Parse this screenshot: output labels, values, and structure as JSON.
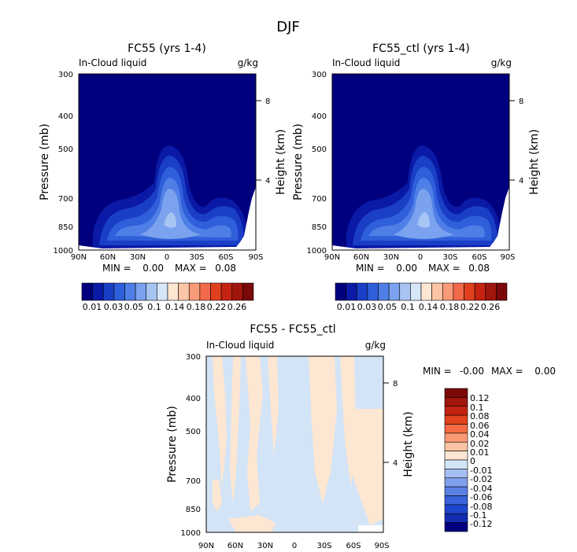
{
  "page": {
    "title": "DJF"
  },
  "colors": {
    "contour_levels": [
      "#00007f",
      "#0a1aa6",
      "#1a3fc6",
      "#2f5fda",
      "#4f7fe6",
      "#7aa2ee",
      "#a8c4f3",
      "#d5e6f7",
      "#fde6d2",
      "#fcc5a5",
      "#f99a78",
      "#f26a4a",
      "#e0401e",
      "#c42312",
      "#a0150d",
      "#7a0909"
    ],
    "diff_levels": [
      "#00007f",
      "#102cb0",
      "#1d45cc",
      "#3a62da",
      "#5a80e4",
      "#7fa0ec",
      "#a6bff2",
      "#d3e4f6",
      "#fde6d2",
      "#fcc4a2",
      "#f99a74",
      "#f36a45",
      "#e2421d",
      "#c32311",
      "#a0150d",
      "#7a0909"
    ]
  },
  "chart_data": [
    {
      "type": "heatmap",
      "id": "panel-fc55",
      "title": "FC55 (yrs 1-4)",
      "subtitle_left": "In-Cloud liquid",
      "subtitle_right": "g/kg",
      "ylabel": "Pressure (mb)",
      "y2label": "Height (km)",
      "x_ticks": [
        "90N",
        "60N",
        "30N",
        "0",
        "30S",
        "60S",
        "90S"
      ],
      "y_ticks": [
        "300",
        "400",
        "500",
        "700",
        "850",
        "1000"
      ],
      "y2_ticks": [
        "8",
        "4"
      ],
      "stats": {
        "min_label": "MIN =",
        "min": "0.00",
        "max_label": "MAX =",
        "max": "0.08"
      },
      "colorbar_labels": [
        "0.01",
        "0.03",
        "0.05",
        "0.1",
        "0.14",
        "0.18",
        "0.22",
        "0.26"
      ]
    },
    {
      "type": "heatmap",
      "id": "panel-fc55-ctl",
      "title": "FC55_ctl (yrs 1-4)",
      "subtitle_left": "In-Cloud liquid",
      "subtitle_right": "g/kg",
      "ylabel": "Pressure (mb)",
      "y2label": "Height (km)",
      "x_ticks": [
        "90N",
        "60N",
        "30N",
        "0",
        "30S",
        "60S",
        "90S"
      ],
      "y_ticks": [
        "300",
        "400",
        "500",
        "700",
        "850",
        "1000"
      ],
      "y2_ticks": [
        "8",
        "4"
      ],
      "stats": {
        "min_label": "MIN =",
        "min": "0.00",
        "max_label": "MAX =",
        "max": "0.08"
      },
      "colorbar_labels": [
        "0.01",
        "0.03",
        "0.05",
        "0.1",
        "0.14",
        "0.18",
        "0.22",
        "0.26"
      ]
    },
    {
      "type": "heatmap",
      "id": "panel-diff",
      "title": "FC55 - FC55_ctl",
      "subtitle_left": "In-Cloud liquid",
      "subtitle_right": "g/kg",
      "ylabel": "Pressure (mb)",
      "y2label": "Height (km)",
      "x_ticks": [
        "90N",
        "60N",
        "30N",
        "0",
        "30S",
        "60S",
        "90S"
      ],
      "y_ticks": [
        "300",
        "400",
        "500",
        "700",
        "850",
        "1000"
      ],
      "y2_ticks": [
        "8",
        "4"
      ],
      "stats": {
        "min_label": "MIN =",
        "min": "-0.00",
        "max_label": "MAX =",
        "max": "0.00"
      },
      "colorbar_labels": [
        "0.12",
        "0.1",
        "0.08",
        "0.06",
        "0.04",
        "0.02",
        "0.01",
        "0",
        "-0.01",
        "-0.02",
        "-0.04",
        "-0.06",
        "-0.08",
        "-0.1",
        "-0.12"
      ]
    }
  ]
}
